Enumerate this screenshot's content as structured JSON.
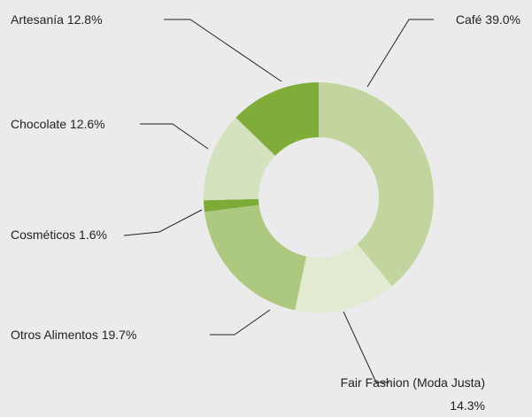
{
  "chart_data": {
    "type": "donut",
    "categories": [
      "Café",
      "Fair Fashion (Moda Justa)",
      "Otros Alimentos",
      "Cosméticos",
      "Chocolate",
      "Artesanía"
    ],
    "values": [
      39.0,
      14.3,
      19.7,
      1.6,
      12.6,
      12.8
    ],
    "value_labels": [
      "39.0%",
      "14.3%",
      "19.7%",
      "1.6%",
      "12.6%",
      "12.8%"
    ],
    "colors": [
      "#c2d59e",
      "#e2ebd1",
      "#adc97f",
      "#7dab38",
      "#d5e2bf",
      "#80ac39"
    ]
  }
}
